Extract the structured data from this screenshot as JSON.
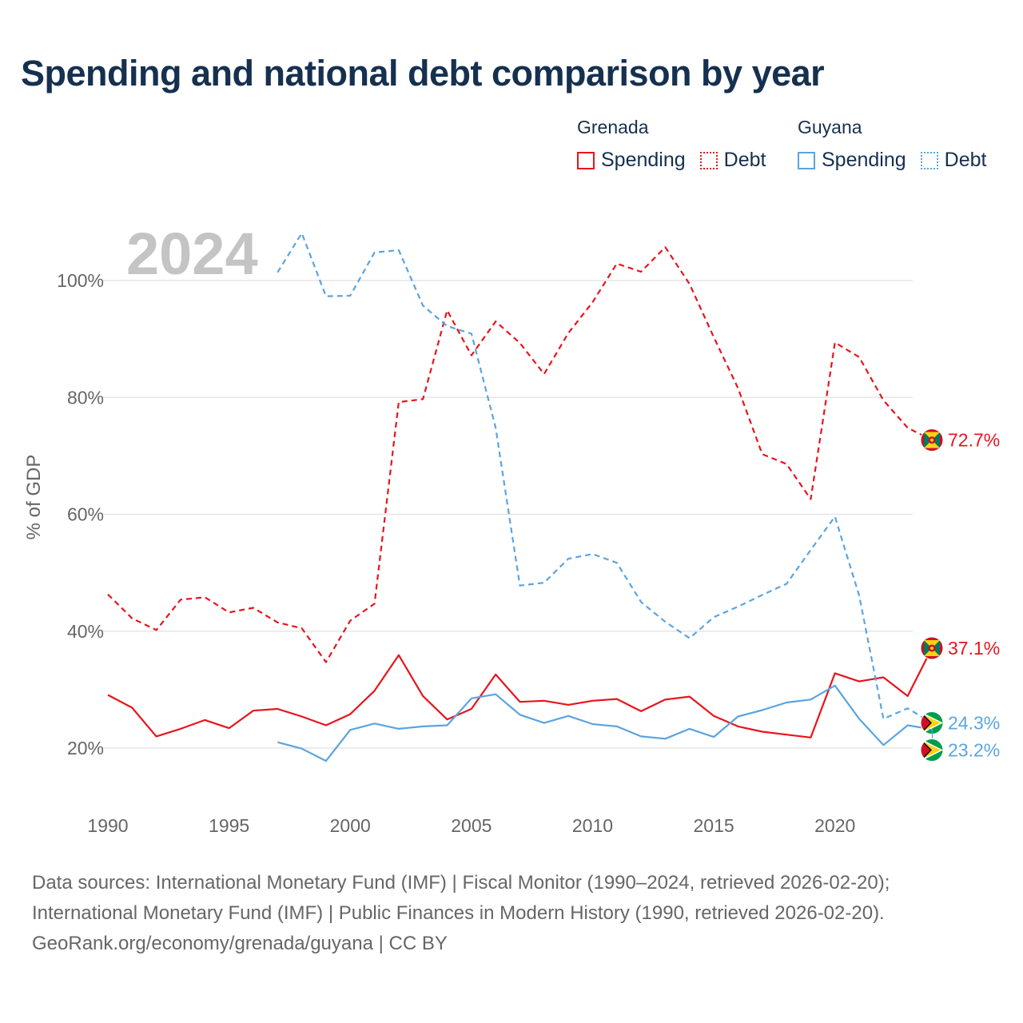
{
  "title": "Spending and national debt comparison by year",
  "legend": {
    "groups": [
      {
        "country": "Grenada",
        "color": "#e8141c",
        "items": [
          "Spending",
          "Debt"
        ]
      },
      {
        "country": "Guyana",
        "color": "#5ba4e0",
        "items": [
          "Spending",
          "Debt"
        ]
      }
    ]
  },
  "footer": {
    "line1": "Data sources: International Monetary Fund (IMF) | Fiscal Monitor (1990–2024, retrieved 2026-02-20);",
    "line2": "International Monetary Fund (IMF) | Public Finances in Modern History (1990, retrieved 2026-02-20).",
    "line3": "GeoRank.org/economy/grenada/guyana | CC BY"
  },
  "chart_data": {
    "type": "line",
    "year_label": "2024",
    "ylabel": "% of GDP",
    "xlim": [
      1990,
      2024
    ],
    "ylim": [
      10,
      110
    ],
    "x_ticks": [
      1990,
      1995,
      2000,
      2005,
      2010,
      2015,
      2020
    ],
    "x_tick_labels": [
      "1990",
      "1995",
      "2000",
      "2005",
      "2010",
      "2015",
      "2020"
    ],
    "y_ticks": [
      20,
      40,
      60,
      80,
      100
    ],
    "y_tick_labels": [
      "20%",
      "40%",
      "60%",
      "80%",
      "100%"
    ],
    "series": [
      {
        "name": "Grenada Debt",
        "color": "#e8141c",
        "dash": true,
        "start_year": 1990,
        "values": [
          46.3,
          42.2,
          40.2,
          45.4,
          45.8,
          43.2,
          44.0,
          41.5,
          40.5,
          34.7,
          41.8,
          44.7,
          79.2,
          79.7,
          94.9,
          87.2,
          93.0,
          89.3,
          84.0,
          91.0,
          96.3,
          102.9,
          101.5,
          105.7,
          99.4,
          90.3,
          81.6,
          70.3,
          68.6,
          62.6,
          89.4,
          86.9,
          79.5,
          74.8,
          72.7
        ],
        "end_label": "72.7%",
        "flag": "grenada"
      },
      {
        "name": "Grenada Spending",
        "color": "#e8141c",
        "dash": false,
        "start_year": 1990,
        "values": [
          29.1,
          26.9,
          22.0,
          23.3,
          24.8,
          23.4,
          26.4,
          26.7,
          25.4,
          23.9,
          25.8,
          29.8,
          35.9,
          28.9,
          24.9,
          26.7,
          32.6,
          27.9,
          28.1,
          27.4,
          28.1,
          28.4,
          26.3,
          28.3,
          28.8,
          25.5,
          23.7,
          22.8,
          22.3,
          21.8,
          32.8,
          31.4,
          32.1,
          28.9,
          37.1
        ],
        "end_label": "37.1%",
        "flag": "grenada"
      },
      {
        "name": "Guyana Debt",
        "color": "#5ba4e0",
        "dash": true,
        "start_year": 1997,
        "values": [
          101.4,
          108.1,
          97.3,
          97.4,
          104.8,
          105.2,
          95.7,
          92.2,
          90.9,
          74.8,
          47.8,
          48.3,
          52.4,
          53.2,
          51.7,
          45.0,
          41.6,
          38.8,
          42.4,
          44.2,
          46.2,
          48.1,
          53.9,
          59.6,
          46.1,
          25.0,
          26.8,
          24.3
        ],
        "end_label": "24.3%",
        "flag": "guyana"
      },
      {
        "name": "Guyana Spending",
        "color": "#5ba4e0",
        "dash": false,
        "start_year": 1997,
        "values": [
          21.0,
          19.9,
          17.8,
          23.1,
          24.2,
          23.3,
          23.7,
          23.9,
          28.5,
          29.2,
          25.7,
          24.3,
          25.5,
          24.1,
          23.7,
          22.0,
          21.6,
          23.3,
          21.9,
          25.4,
          26.5,
          27.8,
          28.3,
          30.7,
          25.0,
          20.5,
          23.9,
          23.2
        ],
        "end_label": "23.2%",
        "flag": "guyana"
      }
    ]
  }
}
